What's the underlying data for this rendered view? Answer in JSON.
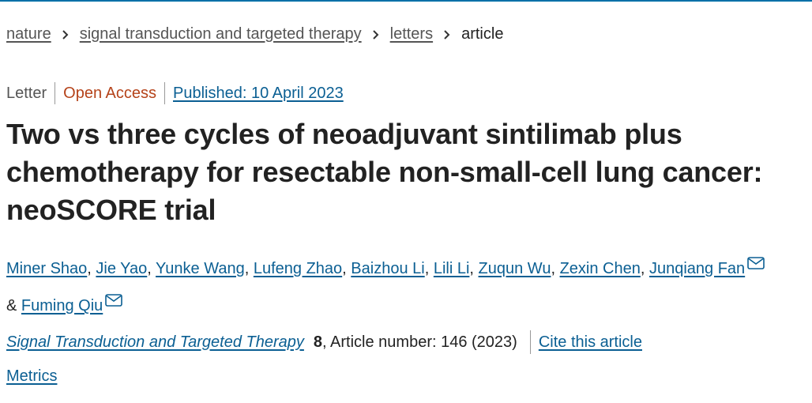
{
  "breadcrumb": {
    "items": [
      "nature",
      "signal transduction and targeted therapy",
      "letters"
    ],
    "current": "article"
  },
  "article": {
    "type": "Letter",
    "access": "Open Access",
    "published": "Published: 10 April 2023",
    "title": "Two vs three cycles of neoadjuvant sintilimab plus chemotherapy for resectable non-small-cell lung cancer: neoSCORE trial"
  },
  "authors": {
    "list": [
      "Miner Shao",
      "Jie Yao",
      "Yunke Wang",
      "Lufeng Zhao",
      "Baizhou Li",
      "Lili Li",
      "Zuqun Wu",
      "Zexin Chen",
      "Junqiang Fan",
      "Fuming Qiu"
    ],
    "separator": ", ",
    "conjunction": "&"
  },
  "citation": {
    "journal": "Signal Transduction and Targeted Therapy",
    "volume": "8",
    "details": ", Article number: 146 (2023)",
    "cite_label": "Cite this article"
  },
  "metrics_label": "Metrics",
  "colors": {
    "link": "#0b5f93",
    "open_access": "#b5431a",
    "top_rule": "#0070a8",
    "text": "#222222"
  }
}
